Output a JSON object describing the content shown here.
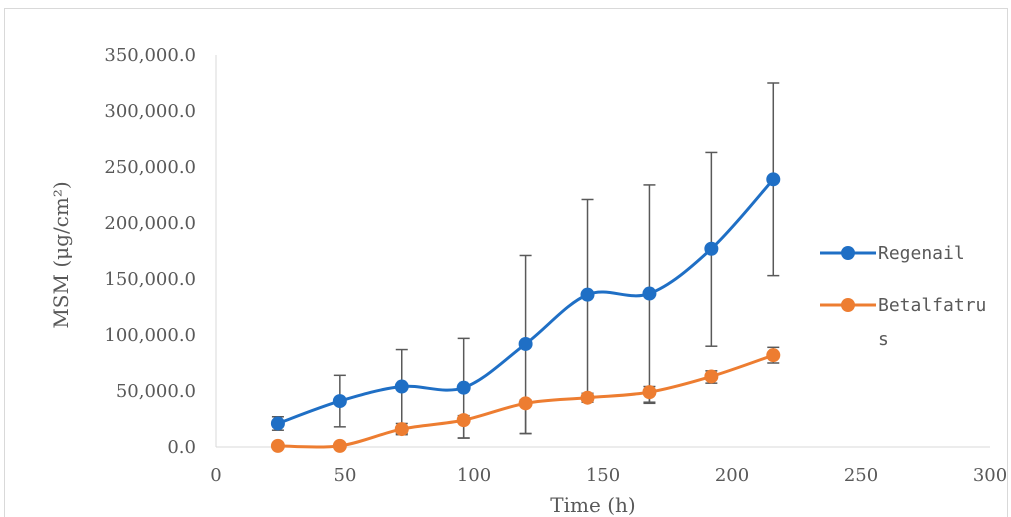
{
  "chart_data": {
    "type": "line",
    "xlabel": "Time (h)",
    "ylabel": "MSM (μg/cm²)",
    "xlim": [
      0,
      300
    ],
    "ylim": [
      0,
      350000
    ],
    "x_ticks": [
      0,
      50,
      100,
      150,
      200,
      250,
      300
    ],
    "y_ticks": [
      0,
      50000,
      100000,
      150000,
      200000,
      250000,
      300000,
      350000
    ],
    "y_tick_labels": [
      "0.0",
      "50,000.0",
      "100,000.0",
      "150,000.0",
      "200,000.0",
      "250,000.0",
      "300,000.0",
      "350,000.0"
    ],
    "grid": false,
    "smooth": true,
    "legend_position": "right",
    "series": [
      {
        "name": "Regenail",
        "color": "#1f6fc5",
        "marker": "circle",
        "x": [
          24,
          48,
          72,
          96,
          120,
          144,
          168,
          192,
          216
        ],
        "y": [
          21000,
          41000,
          54000,
          53000,
          92000,
          136000,
          137000,
          177000,
          239000
        ],
        "err_low": [
          15000,
          18000,
          12000,
          8000,
          12000,
          48000,
          40000,
          90000,
          153000
        ],
        "err_high": [
          27000,
          64000,
          87000,
          97000,
          171000,
          221000,
          234000,
          263000,
          325000
        ]
      },
      {
        "name": "Betalfatrus",
        "color": "#ed7d31",
        "marker": "circle",
        "x": [
          24,
          48,
          72,
          96,
          120,
          144,
          168,
          192,
          216
        ],
        "y": [
          1000,
          1000,
          16000,
          24000,
          39000,
          44000,
          49000,
          63000,
          82000
        ],
        "err_low": [
          1000,
          1000,
          11000,
          8000,
          12000,
          40000,
          39000,
          57000,
          75000
        ],
        "err_high": [
          1000,
          1000,
          21000,
          28000,
          42000,
          48000,
          54000,
          68000,
          89000
        ]
      }
    ]
  }
}
